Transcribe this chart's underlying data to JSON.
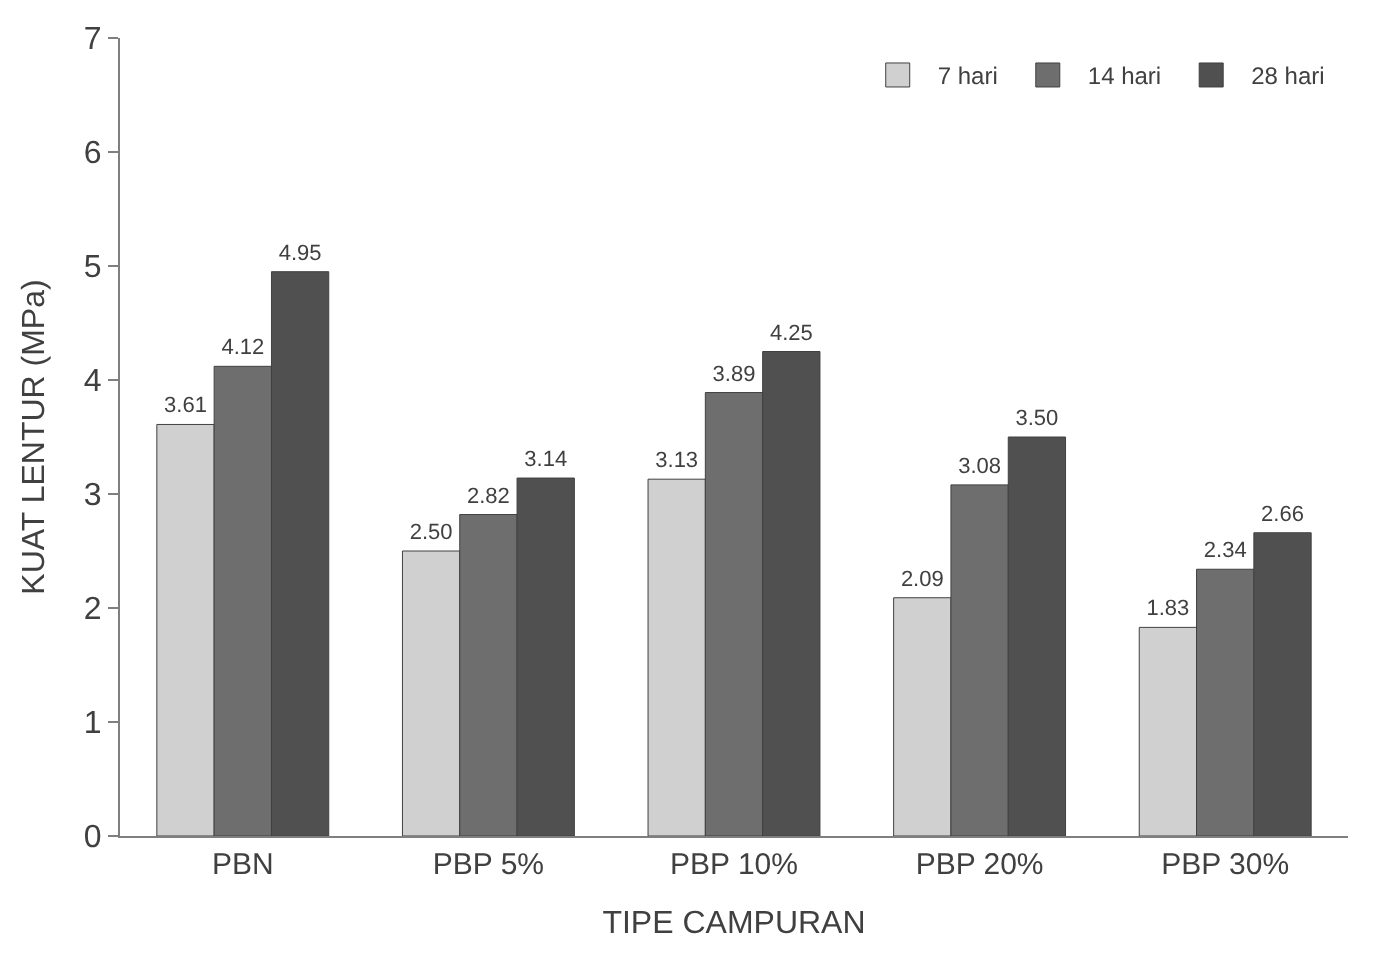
{
  "chart_data": {
    "type": "bar",
    "xlabel": "TIPE CAMPURAN",
    "ylabel": "KUAT LENTUR (MPa)",
    "categories": [
      "PBN",
      "PBP 5%",
      "PBP 10%",
      "PBP 20%",
      "PBP 30%"
    ],
    "series": [
      {
        "name": "7 hari",
        "color": "#d0d0d0",
        "values": [
          3.61,
          2.5,
          3.13,
          2.09,
          1.83
        ],
        "value_labels": [
          "3.61",
          "2.50",
          "3.13",
          "2.09",
          "1.83"
        ]
      },
      {
        "name": "14 hari",
        "color": "#6e6e6e",
        "values": [
          4.12,
          2.82,
          3.89,
          3.08,
          2.34
        ],
        "value_labels": [
          "4.12",
          "2.82",
          "3.89",
          "3.08",
          "2.34"
        ]
      },
      {
        "name": "28 hari",
        "color": "#505050",
        "values": [
          4.95,
          3.14,
          4.25,
          3.5,
          2.66
        ],
        "value_labels": [
          "4.95",
          "3.14",
          "4.25",
          "3.50",
          "2.66"
        ]
      }
    ],
    "ylim": [
      0,
      7
    ],
    "yticks": [
      0,
      1,
      2,
      3,
      4,
      5,
      6,
      7
    ],
    "legend": "top right"
  }
}
